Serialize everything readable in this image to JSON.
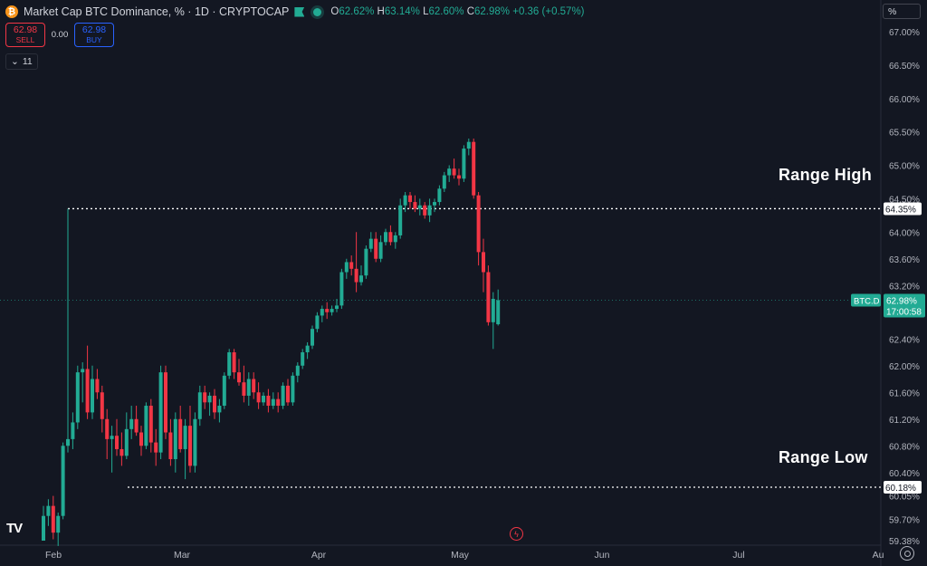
{
  "header": {
    "symbol_title": "Market Cap BTC Dominance, % · 1D · CRYPTOCAP",
    "ohlc": {
      "o_label": "O",
      "o_value": "62.62%",
      "h_label": "H",
      "h_value": "63.14%",
      "l_label": "L",
      "l_value": "62.60%",
      "c_label": "C",
      "c_value": "62.98%",
      "change": "+0.36 (+0.57%)"
    }
  },
  "trade": {
    "sell_price": "62.98",
    "sell_label": "SELL",
    "spread": "0.00",
    "buy_price": "62.98",
    "buy_label": "BUY"
  },
  "indicators": {
    "count": "11"
  },
  "scale_mode": "%",
  "annotations": {
    "range_high": "Range High",
    "range_low": "Range Low"
  },
  "colors": {
    "up": "#22ab94",
    "down": "#f23645",
    "background": "#131722",
    "line_levels": "#ffffff"
  },
  "chart_data": {
    "type": "candlestick",
    "y_axis": {
      "min": 59.38,
      "max": 67.2,
      "ticks": [
        "67.00%",
        "66.50%",
        "66.00%",
        "65.50%",
        "65.00%",
        "64.50%",
        "64.00%",
        "63.60%",
        "63.20%",
        "62.80%",
        "62.40%",
        "62.00%",
        "61.60%",
        "61.20%",
        "60.80%",
        "60.40%",
        "60.05%",
        "59.70%",
        "59.38%"
      ]
    },
    "x_axis": {
      "tick_labels": [
        "Feb",
        "Mar",
        "Apr",
        "May",
        "Jun",
        "Jul",
        "Au"
      ]
    },
    "levels": [
      {
        "label": "Range High",
        "value": 64.35,
        "tag": "64.35%"
      },
      {
        "label": "Range Low",
        "value": 60.18,
        "tag": "60.18%"
      }
    ],
    "last_price": {
      "symbol": "BTC.D",
      "value": 62.98,
      "tag": "62.98%",
      "countdown": "17:00:58"
    },
    "candles": [
      [
        59.38,
        59.9,
        59.38,
        59.75
      ],
      [
        59.75,
        60.0,
        59.6,
        59.9
      ],
      [
        59.9,
        60.05,
        59.4,
        59.5
      ],
      [
        59.5,
        59.8,
        59.3,
        59.75
      ],
      [
        59.75,
        60.85,
        59.7,
        60.8
      ],
      [
        60.8,
        64.35,
        60.7,
        60.9
      ],
      [
        60.9,
        61.3,
        60.75,
        61.15
      ],
      [
        61.15,
        62.0,
        61.05,
        61.9
      ],
      [
        61.9,
        62.05,
        61.45,
        61.95
      ],
      [
        61.95,
        62.3,
        61.2,
        61.3
      ],
      [
        61.3,
        62.0,
        61.2,
        61.8
      ],
      [
        61.8,
        61.95,
        61.5,
        61.6
      ],
      [
        61.6,
        61.7,
        61.0,
        61.2
      ],
      [
        61.2,
        61.35,
        60.6,
        60.9
      ],
      [
        60.9,
        61.1,
        60.4,
        60.95
      ],
      [
        60.95,
        61.2,
        60.65,
        60.75
      ],
      [
        60.75,
        61.0,
        60.5,
        60.65
      ],
      [
        60.65,
        61.3,
        60.6,
        61.05
      ],
      [
        61.05,
        61.4,
        60.9,
        61.2
      ],
      [
        61.2,
        61.4,
        60.95,
        61.0
      ],
      [
        61.0,
        61.1,
        60.65,
        60.8
      ],
      [
        60.8,
        61.45,
        60.75,
        61.4
      ],
      [
        61.4,
        61.5,
        60.7,
        60.85
      ],
      [
        60.85,
        61.05,
        60.5,
        60.7
      ],
      [
        60.7,
        62.0,
        60.6,
        61.9
      ],
      [
        61.9,
        62.0,
        60.9,
        61.0
      ],
      [
        61.0,
        61.2,
        60.5,
        60.6
      ],
      [
        60.6,
        61.3,
        60.4,
        61.2
      ],
      [
        61.2,
        61.4,
        60.7,
        60.75
      ],
      [
        60.75,
        61.2,
        60.3,
        61.1
      ],
      [
        61.1,
        61.4,
        60.4,
        60.5
      ],
      [
        60.5,
        61.3,
        60.4,
        61.2
      ],
      [
        61.2,
        61.7,
        61.1,
        61.6
      ],
      [
        61.6,
        61.7,
        61.35,
        61.45
      ],
      [
        61.45,
        61.6,
        61.25,
        61.55
      ],
      [
        61.55,
        61.65,
        61.2,
        61.3
      ],
      [
        61.3,
        61.5,
        61.15,
        61.4
      ],
      [
        61.4,
        61.9,
        61.35,
        61.85
      ],
      [
        61.85,
        62.25,
        61.8,
        62.2
      ],
      [
        62.2,
        62.25,
        61.8,
        61.9
      ],
      [
        61.9,
        62.1,
        61.7,
        61.75
      ],
      [
        61.75,
        62.0,
        61.45,
        61.55
      ],
      [
        61.55,
        61.9,
        61.4,
        61.8
      ],
      [
        61.8,
        61.9,
        61.5,
        61.6
      ],
      [
        61.6,
        61.75,
        61.35,
        61.45
      ],
      [
        61.45,
        61.6,
        61.4,
        61.55
      ],
      [
        61.55,
        61.65,
        61.3,
        61.4
      ],
      [
        61.4,
        61.6,
        61.35,
        61.5
      ],
      [
        61.5,
        61.6,
        61.3,
        61.4
      ],
      [
        61.4,
        61.75,
        61.35,
        61.7
      ],
      [
        61.7,
        61.8,
        61.4,
        61.45
      ],
      [
        61.45,
        61.9,
        61.4,
        61.85
      ],
      [
        61.85,
        62.05,
        61.75,
        62.0
      ],
      [
        62.0,
        62.25,
        61.95,
        62.2
      ],
      [
        62.2,
        62.35,
        62.1,
        62.3
      ],
      [
        62.3,
        62.6,
        62.25,
        62.55
      ],
      [
        62.55,
        62.8,
        62.5,
        62.75
      ],
      [
        62.75,
        62.9,
        62.65,
        62.85
      ],
      [
        62.85,
        62.95,
        62.7,
        62.8
      ],
      [
        62.8,
        62.9,
        62.75,
        62.85
      ],
      [
        62.85,
        63.0,
        62.8,
        62.9
      ],
      [
        62.9,
        63.45,
        62.85,
        63.4
      ],
      [
        63.4,
        63.6,
        63.3,
        63.55
      ],
      [
        63.55,
        63.65,
        63.35,
        63.45
      ],
      [
        63.45,
        64.0,
        63.1,
        63.25
      ],
      [
        63.25,
        63.5,
        63.2,
        63.35
      ],
      [
        63.35,
        63.8,
        63.3,
        63.75
      ],
      [
        63.75,
        64.0,
        63.7,
        63.9
      ],
      [
        63.9,
        64.0,
        63.55,
        63.6
      ],
      [
        63.6,
        63.95,
        63.55,
        63.85
      ],
      [
        63.85,
        64.05,
        63.8,
        64.0
      ],
      [
        64.0,
        64.1,
        63.8,
        63.85
      ],
      [
        63.85,
        64.0,
        63.75,
        63.95
      ],
      [
        63.95,
        64.5,
        63.9,
        64.4
      ],
      [
        64.4,
        64.6,
        64.3,
        64.55
      ],
      [
        64.55,
        64.6,
        64.35,
        64.45
      ],
      [
        64.45,
        64.55,
        64.3,
        64.35
      ],
      [
        64.35,
        64.5,
        64.25,
        64.4
      ],
      [
        64.4,
        64.45,
        64.2,
        64.25
      ],
      [
        64.25,
        64.5,
        64.15,
        64.4
      ],
      [
        64.4,
        64.5,
        64.3,
        64.45
      ],
      [
        64.45,
        64.7,
        64.4,
        64.65
      ],
      [
        64.65,
        64.9,
        64.6,
        64.85
      ],
      [
        64.85,
        65.0,
        64.75,
        64.95
      ],
      [
        64.95,
        65.1,
        64.8,
        64.85
      ],
      [
        64.85,
        64.95,
        64.7,
        64.8
      ],
      [
        64.8,
        65.3,
        64.75,
        65.25
      ],
      [
        65.25,
        65.4,
        65.15,
        65.35
      ],
      [
        65.35,
        65.4,
        64.5,
        64.55
      ],
      [
        64.55,
        64.6,
        63.5,
        63.7
      ],
      [
        63.7,
        63.9,
        63.1,
        63.4
      ],
      [
        63.4,
        63.5,
        62.6,
        62.65
      ],
      [
        62.65,
        63.1,
        62.25,
        63.0
      ],
      [
        62.62,
        63.14,
        62.6,
        62.98
      ]
    ]
  }
}
